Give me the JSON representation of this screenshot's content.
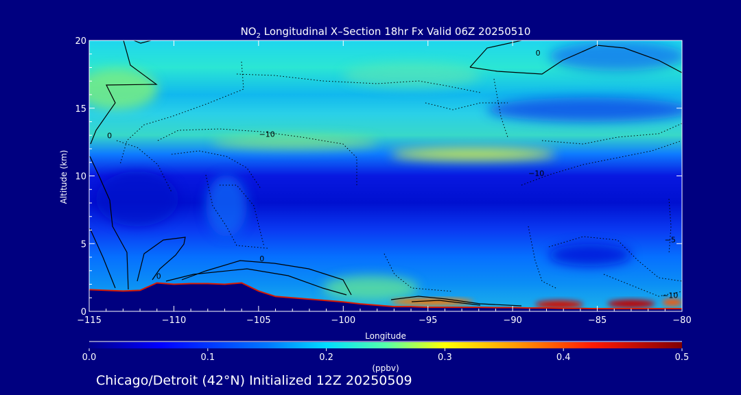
{
  "chart_data": {
    "type": "heatmap",
    "title_prefix": "NO",
    "title_subscript": "2",
    "title_suffix": " Longitudinal X–Section 18hr  Fx Valid 06Z 20250510",
    "xlabel": "Longitude",
    "ylabel": "Altitude (km)",
    "xlim": [
      -115,
      -80
    ],
    "ylim": [
      0,
      20
    ],
    "xticks": [
      -115,
      -110,
      -105,
      -100,
      -95,
      -90,
      -85,
      -80
    ],
    "xtick_labels": [
      "−115",
      "−110",
      "−105",
      "−100",
      "−95",
      "−90",
      "−85",
      "−80"
    ],
    "yticks": [
      0,
      5,
      10,
      15,
      20
    ],
    "ytick_labels": [
      "0",
      "5",
      "10",
      "15",
      "20"
    ],
    "colorbar": {
      "min": 0.0,
      "max": 0.5,
      "ticks": [
        0.0,
        0.1,
        0.2,
        0.3,
        0.4,
        0.5
      ],
      "tick_labels": [
        "0.0",
        "0.1",
        "0.2",
        "0.3",
        "0.4",
        "0.5"
      ],
      "unit": "(ppbv)"
    },
    "contour_labels": [
      {
        "text": "0",
        "lon": -113.8,
        "alt": 13.0
      },
      {
        "text": "0",
        "lon": -104.8,
        "alt": 3.9
      },
      {
        "text": "0",
        "lon": -110.9,
        "alt": 2.6
      },
      {
        "text": "0",
        "lon": -88.5,
        "alt": 19.1
      },
      {
        "text": "−10",
        "lon": -104.5,
        "alt": 13.1
      },
      {
        "text": "−10",
        "lon": -88.6,
        "alt": 10.2
      },
      {
        "text": "−10",
        "lon": -80.7,
        "alt": 1.2
      },
      {
        "text": "−5",
        "lon": -80.7,
        "alt": 5.3
      }
    ],
    "terrain": {
      "lon": [
        -115,
        -114,
        -113,
        -112,
        -111,
        -110,
        -109,
        -108,
        -107,
        -106,
        -105,
        -104,
        -103,
        -102,
        -101,
        -100,
        -99,
        -98,
        -97,
        -96,
        -95,
        -94,
        -93,
        -92,
        -91,
        -90,
        -89,
        -88,
        -87,
        -86,
        -85,
        -84,
        -83,
        -82,
        -81,
        -80
      ],
      "alt": [
        1.6,
        1.55,
        1.5,
        1.55,
        2.1,
        2.0,
        2.05,
        2.05,
        2.0,
        2.1,
        1.5,
        1.1,
        1.0,
        0.9,
        0.8,
        0.7,
        0.55,
        0.45,
        0.35,
        0.35,
        0.3,
        0.3,
        0.3,
        0.3,
        0.28,
        0.28,
        0.25,
        0.25,
        0.22,
        0.22,
        0.2,
        0.2,
        0.2,
        0.2,
        0.2,
        0.2
      ]
    }
  },
  "footer_text": "Chicago/Detroit (42°N) Initialized 12Z 20250509"
}
